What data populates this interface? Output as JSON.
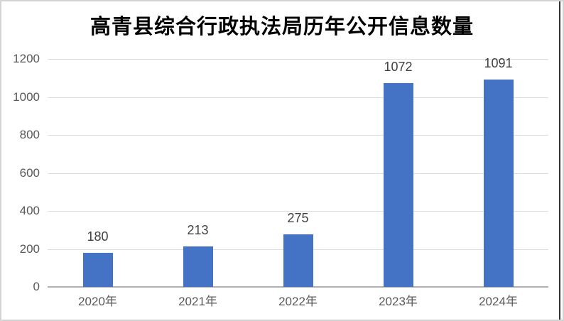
{
  "chart_data": {
    "type": "bar",
    "title": "高青县综合行政执法局历年公开信息数量",
    "categories": [
      "2020年",
      "2021年",
      "2022年",
      "2023年",
      "2024年"
    ],
    "values": [
      180,
      213,
      275,
      1072,
      1091
    ],
    "data_labels": [
      "180",
      "213",
      "275",
      "1072",
      "1091"
    ],
    "xlabel": "",
    "ylabel": "",
    "ylim": [
      0,
      1200
    ],
    "yticks": [
      0,
      200,
      400,
      600,
      800,
      1000,
      1200
    ],
    "grid": true,
    "legend": "none",
    "colors": {
      "bar": "#4472C4",
      "gridline": "#dedede",
      "axis_line": "#b1b1b1",
      "tick_label": "#595959",
      "data_label": "#404040",
      "title": "#000000"
    }
  }
}
